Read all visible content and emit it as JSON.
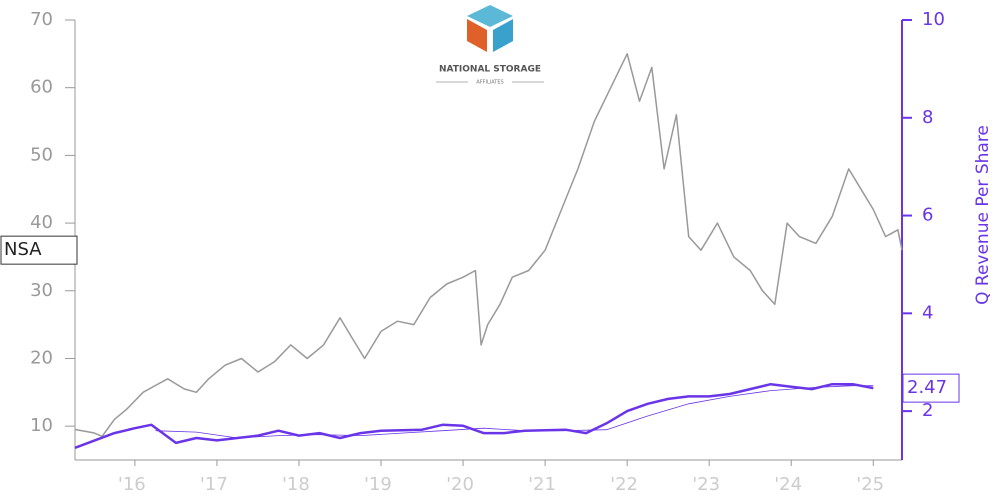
{
  "chart_data": {
    "type": "line",
    "logo": {
      "line1": "NATIONAL STORAGE",
      "line2": "AFFILIATES"
    },
    "y2label": "Q Revenue Per Share",
    "xlim": [
      2015.27,
      2025.35
    ],
    "xticks": [
      {
        "value": 2016,
        "label": "'16"
      },
      {
        "value": 2017,
        "label": "'17"
      },
      {
        "value": 2018,
        "label": "'18"
      },
      {
        "value": 2019,
        "label": "'19"
      },
      {
        "value": 2020,
        "label": "'20"
      },
      {
        "value": 2021,
        "label": "'21"
      },
      {
        "value": 2022,
        "label": "'22"
      },
      {
        "value": 2023,
        "label": "'23"
      },
      {
        "value": 2024,
        "label": "'24"
      },
      {
        "value": 2025,
        "label": "'25"
      }
    ],
    "ylim": [
      5,
      70
    ],
    "yticks": [
      10,
      20,
      30,
      40,
      50,
      60,
      70
    ],
    "y2lim": [
      1,
      10
    ],
    "y2ticks": [
      2,
      4,
      6,
      8,
      10
    ],
    "series": [
      {
        "name": "NSA",
        "color": "#999999",
        "width": 1.5,
        "x": [
          2015.27,
          2015.5,
          2015.6,
          2015.75,
          2015.9,
          2016.1,
          2016.25,
          2016.4,
          2016.6,
          2016.75,
          2016.9,
          2017.1,
          2017.3,
          2017.5,
          2017.7,
          2017.9,
          2018.1,
          2018.3,
          2018.5,
          2018.65,
          2018.8,
          2019.0,
          2019.2,
          2019.4,
          2019.6,
          2019.8,
          2020.0,
          2020.15,
          2020.22,
          2020.3,
          2020.45,
          2020.6,
          2020.8,
          2021.0,
          2021.2,
          2021.4,
          2021.6,
          2021.8,
          2022.0,
          2022.15,
          2022.3,
          2022.45,
          2022.6,
          2022.75,
          2022.9,
          2023.1,
          2023.3,
          2023.5,
          2023.65,
          2023.8,
          2023.95,
          2024.1,
          2024.3,
          2024.5,
          2024.7,
          2024.85,
          2025.0,
          2025.15,
          2025.3,
          2025.35
        ],
        "values": [
          9.5,
          9,
          8.5,
          11,
          12.5,
          15,
          16,
          17,
          15.5,
          15,
          17,
          19,
          20,
          18,
          19.5,
          22,
          20,
          22,
          26,
          23,
          20,
          24,
          25.5,
          25,
          29,
          31,
          32,
          33,
          22,
          25,
          28,
          32,
          33,
          36,
          42,
          48,
          55,
          60,
          65,
          58,
          63,
          48,
          56,
          38,
          36,
          40,
          35,
          33,
          30,
          28,
          40,
          38,
          37,
          41,
          48,
          45,
          42,
          38,
          39,
          36
        ]
      },
      {
        "axis": "y2",
        "color": "#6a35e8",
        "width": 2.5,
        "x": [
          2015.27,
          2015.75,
          2016.0,
          2016.2,
          2016.5,
          2016.75,
          2017.0,
          2017.25,
          2017.5,
          2017.75,
          2018.0,
          2018.25,
          2018.5,
          2018.75,
          2019.0,
          2019.5,
          2019.75,
          2020.0,
          2020.25,
          2020.5,
          2020.75,
          2021.25,
          2021.5,
          2021.75,
          2022.0,
          2022.25,
          2022.5,
          2022.75,
          2023.0,
          2023.25,
          2023.5,
          2023.75,
          2024.0,
          2024.25,
          2024.5,
          2024.75,
          2025.0
        ],
        "values": [
          1.25,
          1.55,
          1.65,
          1.72,
          1.35,
          1.45,
          1.4,
          1.45,
          1.5,
          1.6,
          1.5,
          1.55,
          1.45,
          1.55,
          1.6,
          1.62,
          1.72,
          1.7,
          1.55,
          1.55,
          1.6,
          1.62,
          1.55,
          1.75,
          2.0,
          2.15,
          2.25,
          2.3,
          2.3,
          2.35,
          2.45,
          2.55,
          2.5,
          2.45,
          2.55,
          2.55,
          2.47
        ]
      },
      {
        "axis": "y2",
        "color": "#6a35e8",
        "width": 0.8,
        "x": [
          2016.25,
          2016.75,
          2017.25,
          2017.75,
          2018.25,
          2018.75,
          2019.25,
          2019.75,
          2020.25,
          2020.75,
          2021.25,
          2021.75,
          2022.25,
          2022.75,
          2023.25,
          2023.75,
          2024.25,
          2024.75,
          2025.0
        ],
        "values": [
          1.6,
          1.57,
          1.45,
          1.5,
          1.52,
          1.5,
          1.55,
          1.6,
          1.65,
          1.6,
          1.6,
          1.62,
          1.9,
          2.15,
          2.3,
          2.42,
          2.48,
          2.52,
          2.52
        ]
      }
    ]
  }
}
